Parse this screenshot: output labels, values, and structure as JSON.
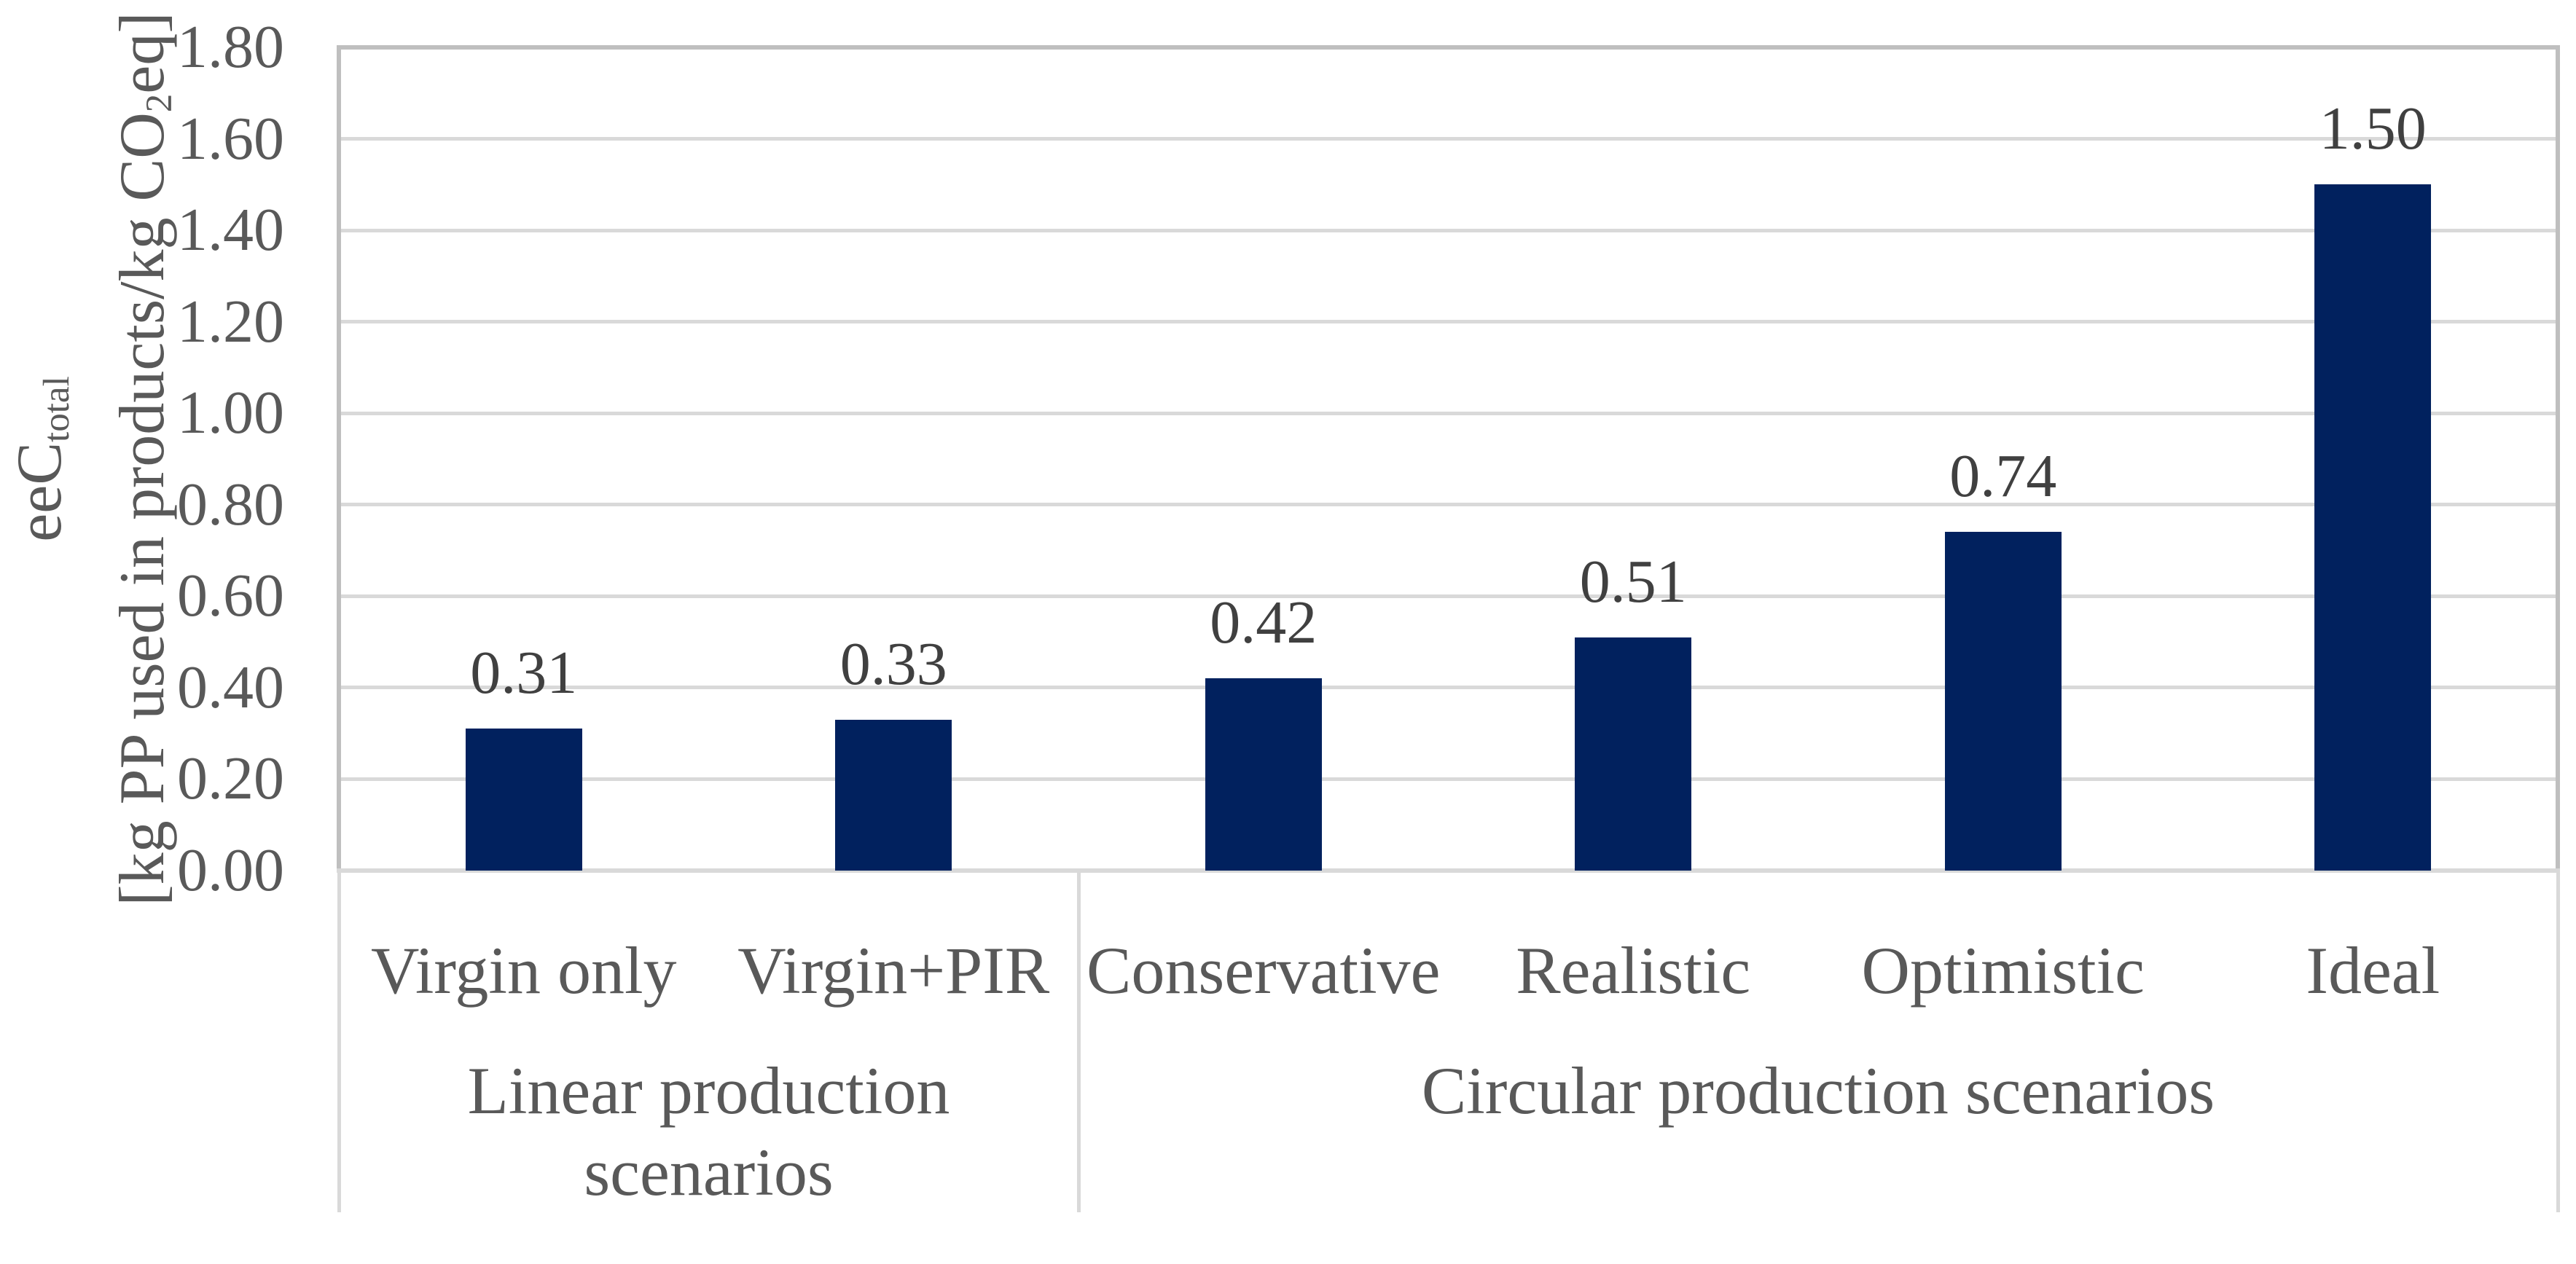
{
  "chart_data": {
    "type": "bar",
    "title": "",
    "categories": [
      "Virgin only",
      "Virgin+PIR",
      "Conservative",
      "Realistic",
      "Optimistic",
      "Ideal"
    ],
    "values": [
      0.31,
      0.33,
      0.42,
      0.51,
      0.74,
      1.5
    ],
    "data_labels": [
      "0.31",
      "0.33",
      "0.42",
      "0.51",
      "0.74",
      "1.50"
    ],
    "groups": [
      {
        "label_lines": [
          "Linear production",
          "scenarios"
        ],
        "span": [
          0,
          2
        ]
      },
      {
        "label_lines": [
          "Circular production scenarios"
        ],
        "span": [
          2,
          6
        ]
      }
    ],
    "ylabel": {
      "line1_main": "eeC",
      "line1_sub": "total",
      "line2_pre": "[kg PP used in products/kg CO",
      "line2_sub": "2",
      "line2_post": "eq]"
    },
    "y_ticks": [
      "0.00",
      "0.20",
      "0.40",
      "0.60",
      "0.80",
      "1.00",
      "1.20",
      "1.40",
      "1.60",
      "1.80"
    ],
    "ylim": [
      0,
      1.8
    ],
    "grid": true,
    "legend": false,
    "xlabel": "",
    "colors": {
      "bar": "#01215E",
      "gridline": "#D9D9D9",
      "plot_border": "#BFBFBF",
      "axis_line": "#D9D9D9",
      "tick_text": "#595959",
      "data_label_text": "#404040",
      "category_text": "#595959",
      "background": "#FFFFFF"
    }
  }
}
